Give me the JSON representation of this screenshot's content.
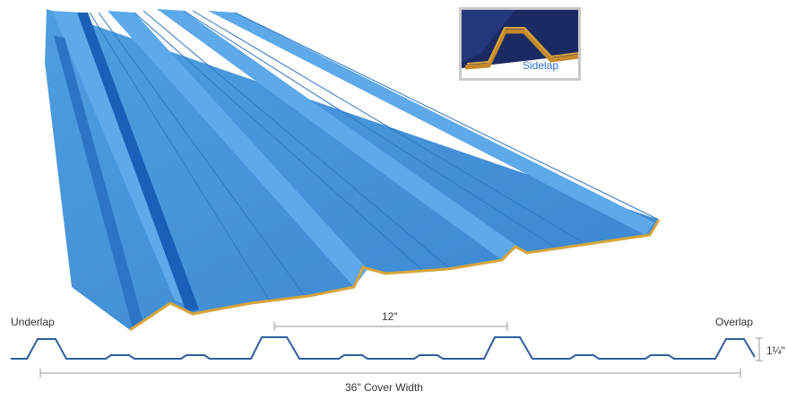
{
  "inset": {
    "label": "Sidelap"
  },
  "profile": {
    "underlap_label": "Underlap",
    "overlap_label": "Overlap",
    "rib_spacing_label": "12\"",
    "rib_height_label": "1¼\"",
    "cover_width_label": "36\" Cover Width"
  },
  "colors": {
    "panel_base": "#3f8fd6",
    "panel_light": "#62aaea",
    "panel_dark": "#1559b3",
    "edge_gold": "#d8a53a",
    "profile_line": "#2f5f9e",
    "inset_dark": "#1b2a63"
  }
}
